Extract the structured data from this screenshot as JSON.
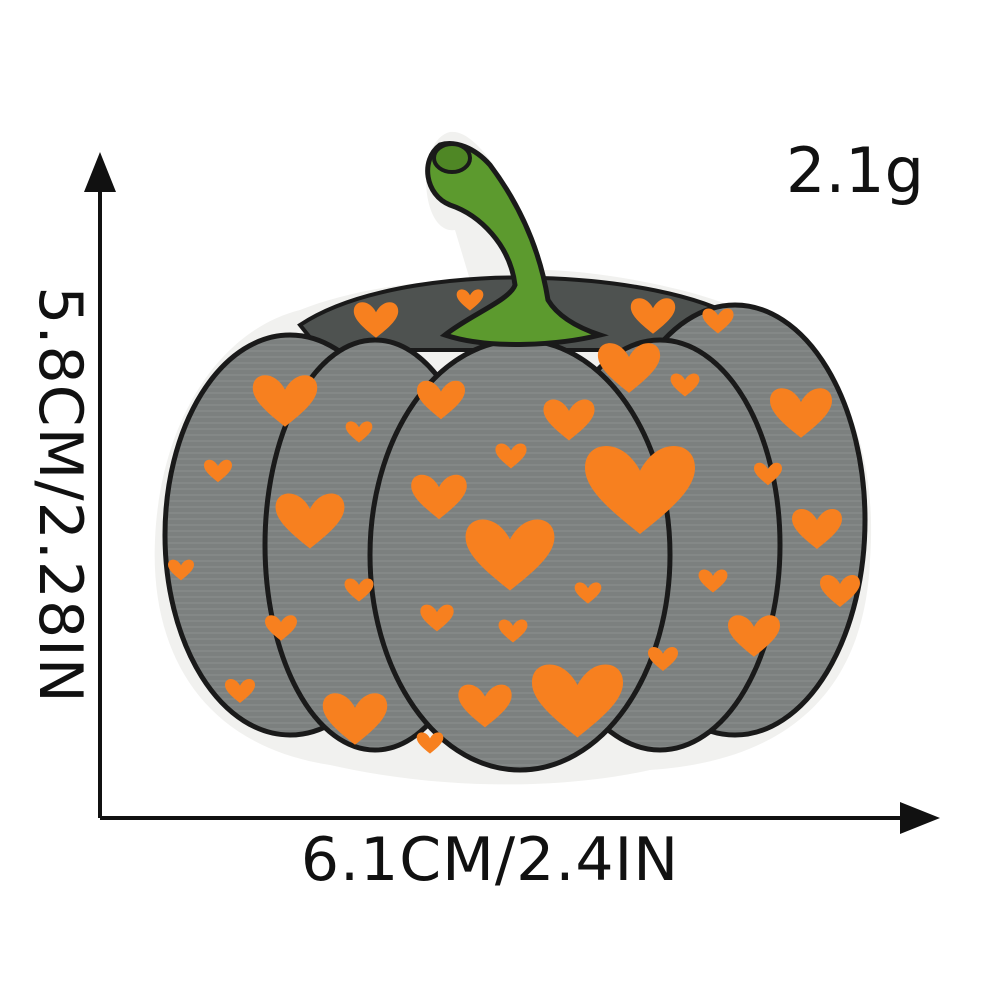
{
  "product": {
    "name_icon": "pumpkin-patch-icon",
    "weight": "2.1g",
    "width_dimension": "6.1CM/2.4IN",
    "height_dimension": "5.8CM/2.28IN"
  },
  "colors": {
    "pumpkin_body": "#7c807f",
    "pumpkin_outline": "#1a1a1a",
    "heart_spots": "#f7801f",
    "stem": "#5c9a2e",
    "backing": "#f1f1ef",
    "text": "#111111"
  }
}
